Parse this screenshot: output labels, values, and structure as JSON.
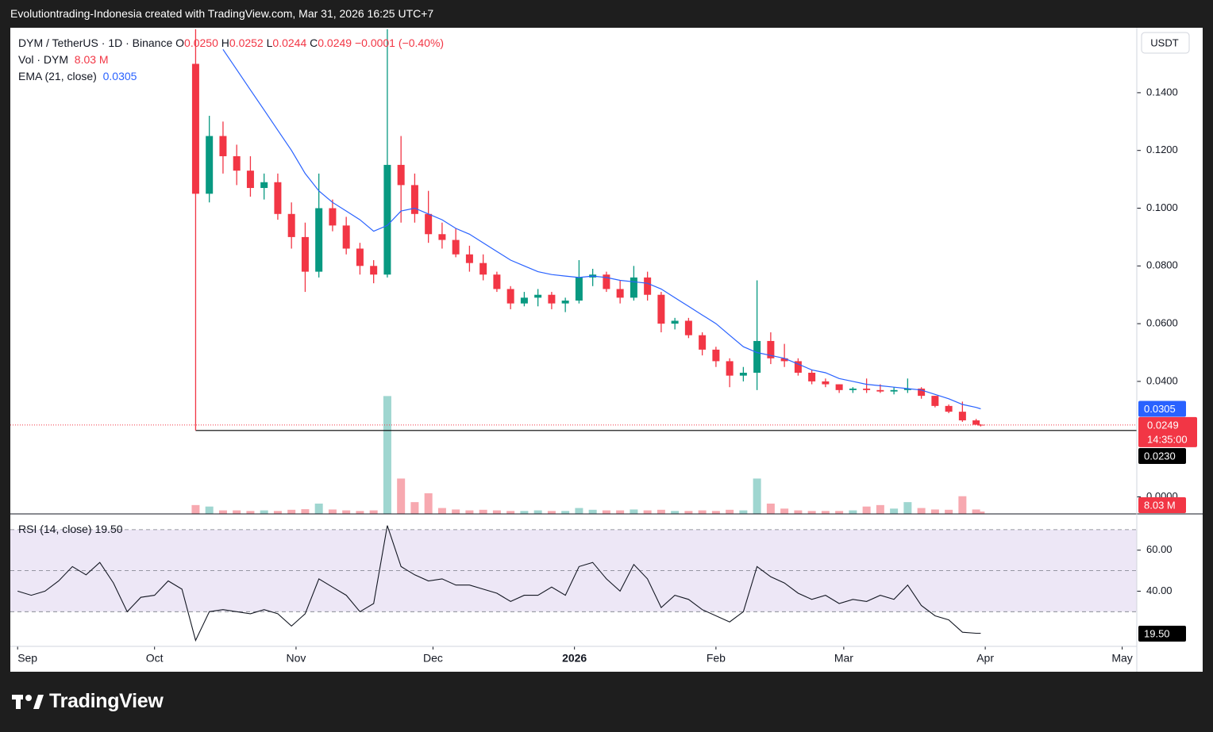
{
  "header": {
    "text": "Evolutiontrading-Indonesia created with TradingView.com, Mar 31, 2026 16:25 UTC+7"
  },
  "legend": {
    "symbol": "DYM / TetherUS · 1D · Binance",
    "ohlc": [
      {
        "key": "O",
        "value": "0.0250"
      },
      {
        "key": "H",
        "value": "0.0252"
      },
      {
        "key": "L",
        "value": "0.0244"
      },
      {
        "key": "C",
        "value": "0.0249"
      }
    ],
    "change": "−0.0001 (−0.40%)",
    "countdown": "14:35:00"
  },
  "axis_unit": "USDT",
  "footer": "TradingView",
  "chart_data": [
    {
      "type": "candlestick",
      "x": [
        39,
        42,
        45,
        48,
        51,
        54,
        57,
        60,
        63,
        66,
        69,
        72,
        75,
        78,
        81,
        84,
        87,
        90,
        93,
        96,
        99,
        102,
        105,
        108,
        111,
        114,
        117,
        120,
        123,
        126,
        129,
        132,
        135,
        138,
        141,
        144,
        147,
        150,
        153,
        156,
        159,
        162,
        165,
        168,
        171,
        174,
        177,
        180,
        183,
        186,
        189,
        192,
        195,
        198,
        201,
        204,
        207,
        210,
        211
      ],
      "open": [
        0.15,
        0.105,
        0.125,
        0.118,
        0.113,
        0.107,
        0.109,
        0.098,
        0.09,
        0.078,
        0.1,
        0.094,
        0.086,
        0.08,
        0.077,
        0.115,
        0.108,
        0.098,
        0.091,
        0.089,
        0.084,
        0.081,
        0.077,
        0.072,
        0.067,
        0.069,
        0.07,
        0.067,
        0.068,
        0.076,
        0.077,
        0.072,
        0.069,
        0.076,
        0.07,
        0.06,
        0.061,
        0.056,
        0.051,
        0.047,
        0.042,
        0.043,
        0.054,
        0.048,
        0.047,
        0.043,
        0.04,
        0.039,
        0.037,
        0.0375,
        0.037,
        0.0365,
        0.037,
        0.0375,
        0.035,
        0.0315,
        0.0295,
        0.0265,
        0.025
      ],
      "high": [
        0.162,
        0.132,
        0.13,
        0.122,
        0.118,
        0.112,
        0.112,
        0.102,
        0.095,
        0.112,
        0.103,
        0.097,
        0.088,
        0.082,
        0.162,
        0.125,
        0.112,
        0.106,
        0.095,
        0.093,
        0.087,
        0.084,
        0.078,
        0.073,
        0.071,
        0.072,
        0.071,
        0.069,
        0.082,
        0.079,
        0.078,
        0.075,
        0.08,
        0.078,
        0.071,
        0.062,
        0.062,
        0.057,
        0.052,
        0.048,
        0.045,
        0.075,
        0.057,
        0.053,
        0.048,
        0.044,
        0.041,
        0.039,
        0.038,
        0.041,
        0.039,
        0.038,
        0.041,
        0.038,
        0.035,
        0.032,
        0.033,
        0.027,
        0.0252
      ],
      "low": [
        0.023,
        0.102,
        0.112,
        0.108,
        0.104,
        0.103,
        0.096,
        0.086,
        0.071,
        0.076,
        0.092,
        0.084,
        0.077,
        0.074,
        0.076,
        0.095,
        0.095,
        0.088,
        0.086,
        0.083,
        0.078,
        0.075,
        0.071,
        0.065,
        0.066,
        0.066,
        0.065,
        0.064,
        0.067,
        0.073,
        0.071,
        0.067,
        0.068,
        0.068,
        0.057,
        0.058,
        0.055,
        0.049,
        0.045,
        0.038,
        0.04,
        0.037,
        0.046,
        0.045,
        0.042,
        0.039,
        0.038,
        0.036,
        0.036,
        0.036,
        0.036,
        0.0355,
        0.036,
        0.034,
        0.031,
        0.029,
        0.026,
        0.025,
        0.0244
      ],
      "close": [
        0.105,
        0.125,
        0.118,
        0.113,
        0.107,
        0.109,
        0.098,
        0.09,
        0.078,
        0.1,
        0.094,
        0.086,
        0.08,
        0.077,
        0.115,
        0.108,
        0.098,
        0.091,
        0.089,
        0.084,
        0.081,
        0.077,
        0.072,
        0.067,
        0.069,
        0.07,
        0.067,
        0.068,
        0.076,
        0.077,
        0.072,
        0.069,
        0.076,
        0.07,
        0.06,
        0.061,
        0.056,
        0.051,
        0.047,
        0.042,
        0.043,
        0.054,
        0.048,
        0.047,
        0.043,
        0.04,
        0.039,
        0.037,
        0.0375,
        0.037,
        0.0365,
        0.037,
        0.0375,
        0.035,
        0.0315,
        0.0295,
        0.0265,
        0.025,
        0.0249
      ],
      "up_color": "#089981",
      "down_color": "#f23645",
      "xlim": [
        -1.6,
        245.2
      ],
      "xticks": [
        {
          "value": 0,
          "label": "Sep"
        },
        {
          "value": 30,
          "label": "Oct"
        },
        {
          "value": 61,
          "label": "Nov"
        },
        {
          "value": 91,
          "label": "Dec"
        },
        {
          "value": 122,
          "label": "2026"
        },
        {
          "value": 153,
          "label": "Feb"
        },
        {
          "value": 181,
          "label": "Mar"
        },
        {
          "value": 212,
          "label": "Apr"
        },
        {
          "value": 242,
          "label": "May"
        }
      ],
      "ylim": [
        -0.0059,
        0.1625
      ],
      "yticks": [
        {
          "value": 0,
          "label": "0.0000"
        },
        {
          "value": 0.04,
          "label": "0.0400"
        },
        {
          "value": 0.06,
          "label": "0.0600"
        },
        {
          "value": 0.08,
          "label": "0.0800"
        },
        {
          "value": 0.1,
          "label": "0.1000"
        },
        {
          "value": 0.12,
          "label": "0.1200"
        },
        {
          "value": 0.14,
          "label": "0.1400"
        }
      ],
      "series": [
        {
          "name": "EMA (21, close)",
          "color": "#2962ff",
          "value_label": "0.0305",
          "values": [
            null,
            null,
            0.155,
            0.148,
            0.141,
            0.134,
            0.127,
            0.12,
            0.112,
            0.106,
            0.102,
            0.099,
            0.096,
            0.092,
            0.094,
            0.099,
            0.1,
            0.098,
            0.096,
            0.093,
            0.091,
            0.088,
            0.085,
            0.082,
            0.08,
            0.078,
            0.077,
            0.0765,
            0.076,
            0.0765,
            0.076,
            0.075,
            0.0745,
            0.074,
            0.072,
            0.069,
            0.066,
            0.063,
            0.06,
            0.056,
            0.052,
            0.05,
            0.049,
            0.048,
            0.046,
            0.044,
            0.043,
            0.041,
            0.04,
            0.039,
            0.0385,
            0.038,
            0.0375,
            0.037,
            0.0355,
            0.034,
            0.032,
            0.031,
            0.0305
          ]
        }
      ],
      "hline": {
        "value": 0.023,
        "label": "0.0230",
        "color": "#000000"
      }
    },
    {
      "type": "bar",
      "name": "Vol · DYM",
      "value_label": "8.03 M",
      "values": [
        30,
        25,
        12,
        12,
        10,
        12,
        10,
        14,
        16,
        35,
        15,
        12,
        10,
        12,
        400,
        120,
        40,
        70,
        20,
        15,
        12,
        14,
        12,
        10,
        10,
        12,
        10,
        10,
        20,
        14,
        12,
        12,
        15,
        12,
        14,
        10,
        10,
        12,
        10,
        14,
        12,
        120,
        35,
        18,
        12,
        10,
        10,
        10,
        12,
        25,
        30,
        18,
        40,
        20,
        15,
        14,
        60,
        15,
        8.03
      ],
      "up_color": "#9fd6d0",
      "down_color": "#f7a9b0",
      "ylim": [
        0,
        1650
      ]
    },
    {
      "type": "line",
      "name": "RSI (14, close)",
      "value_label": "19.50",
      "color": "#131722",
      "x": [
        0,
        3,
        6,
        9,
        12,
        15,
        18,
        21,
        24,
        27,
        30,
        33,
        36,
        39,
        42,
        45,
        48,
        51,
        54,
        57,
        60,
        63,
        66,
        69,
        72,
        75,
        78,
        81,
        84,
        87,
        90,
        93,
        96,
        99,
        102,
        105,
        108,
        111,
        114,
        117,
        120,
        123,
        126,
        129,
        132,
        135,
        138,
        141,
        144,
        147,
        150,
        153,
        156,
        159,
        162,
        165,
        168,
        171,
        174,
        177,
        180,
        183,
        186,
        189,
        192,
        195,
        198,
        201,
        204,
        207,
        210,
        211
      ],
      "values": [
        40,
        38,
        40,
        45,
        52,
        48,
        54,
        44,
        30,
        37,
        38,
        45,
        41,
        16,
        30,
        31,
        30,
        29,
        31,
        29,
        23,
        29,
        46,
        42,
        38,
        30,
        34,
        72,
        52,
        48,
        45,
        46,
        43,
        43,
        41,
        39,
        35,
        38,
        38,
        42,
        38,
        52,
        54,
        46,
        40,
        53,
        46,
        32,
        38,
        36,
        31,
        28,
        25,
        30,
        52,
        47,
        44,
        39,
        36,
        38,
        34,
        36,
        35,
        38,
        36,
        43,
        33,
        28,
        26,
        20,
        19.5,
        19.5
      ],
      "ylim": [
        13.1,
        77.3
      ],
      "yticks": [
        {
          "value": 40,
          "label": "40.00"
        },
        {
          "value": 60,
          "label": "60.00"
        }
      ],
      "hlines": [
        30,
        50,
        70
      ],
      "band_color": "#ede7f6"
    }
  ]
}
